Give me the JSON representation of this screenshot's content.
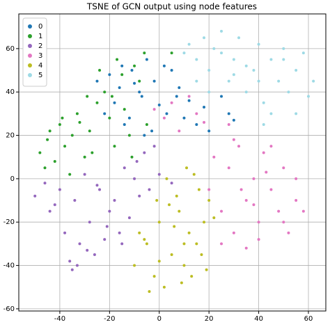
{
  "chart_data": {
    "type": "scatter",
    "title": "TSNE of GCN output using node features",
    "xlim": [
      -56.5,
      67
    ],
    "ylim": [
      -61,
      76
    ],
    "xticks": [
      -40,
      -20,
      0,
      20,
      40,
      60
    ],
    "yticks": [
      -60,
      -40,
      -20,
      0,
      20,
      40,
      60
    ],
    "grid": true,
    "legend": "upper left",
    "series": [
      {
        "name": "0",
        "color": "#1f77b4",
        "x": [
          -20,
          -18,
          -15,
          -12,
          -10,
          -8,
          -5,
          -3,
          -22,
          -16,
          -14,
          -11,
          -7,
          -2,
          0,
          3,
          5,
          8,
          10,
          12,
          15,
          18,
          20,
          25,
          28,
          -25,
          -6,
          2,
          7,
          30
        ],
        "y": [
          48,
          35,
          52,
          28,
          44,
          40,
          55,
          22,
          30,
          42,
          25,
          50,
          38,
          45,
          34,
          30,
          50,
          42,
          28,
          36,
          25,
          33,
          22,
          38,
          30,
          45,
          20,
          52,
          38,
          27
        ]
      },
      {
        "name": "1",
        "color": "#2ca02c",
        "x": [
          -48,
          -45,
          -42,
          -40,
          -38,
          -35,
          -33,
          -30,
          -28,
          -25,
          -22,
          -20,
          -18,
          -15,
          -12,
          -10,
          -8,
          -46,
          -36,
          -32,
          -27,
          -24,
          -19,
          -14,
          -11,
          -6,
          -44,
          -39,
          -29,
          -17,
          -5,
          5
        ],
        "y": [
          12,
          18,
          8,
          25,
          15,
          20,
          30,
          10,
          22,
          35,
          40,
          28,
          15,
          48,
          20,
          52,
          45,
          5,
          2,
          26,
          12,
          50,
          38,
          32,
          10,
          58,
          22,
          28,
          38,
          55,
          25,
          58
        ]
      },
      {
        "name": "2",
        "color": "#9467bd",
        "x": [
          -50,
          -46,
          -44,
          -40,
          -38,
          -36,
          -34,
          -32,
          -30,
          -28,
          -26,
          -24,
          -22,
          -20,
          -18,
          -16,
          -14,
          -12,
          -10,
          -8,
          -6,
          -4,
          -2,
          0,
          -42,
          -35,
          -29,
          -21,
          -15,
          -9,
          -33,
          -25,
          5
        ],
        "y": [
          -8,
          -2,
          -15,
          -5,
          -25,
          -38,
          -10,
          -30,
          2,
          -20,
          -35,
          -5,
          -28,
          -15,
          -10,
          -25,
          5,
          -18,
          0,
          -8,
          12,
          -5,
          15,
          2,
          -12,
          -42,
          -33,
          -22,
          -30,
          8,
          -40,
          -3,
          -2
        ]
      },
      {
        "name": "3",
        "color": "#e377c2",
        "x": [
          20,
          22,
          25,
          28,
          30,
          32,
          35,
          38,
          40,
          42,
          45,
          48,
          50,
          52,
          55,
          58,
          25,
          30,
          35,
          40,
          45,
          50,
          55,
          33,
          28,
          -2,
          2,
          5,
          8,
          12,
          15,
          18,
          43,
          38
        ],
        "y": [
          -5,
          10,
          -15,
          5,
          -25,
          15,
          -10,
          0,
          -20,
          12,
          -5,
          -15,
          5,
          -25,
          -10,
          -15,
          -30,
          18,
          -32,
          -28,
          15,
          -20,
          0,
          -5,
          25,
          32,
          28,
          35,
          22,
          38,
          30,
          26,
          3,
          -12
        ]
      },
      {
        "name": "4",
        "color": "#bcbd22",
        "x": [
          -10,
          -8,
          -5,
          -2,
          0,
          2,
          5,
          8,
          10,
          12,
          15,
          18,
          20,
          -4,
          3,
          7,
          13,
          17,
          -6,
          0,
          6,
          11,
          16,
          9,
          4,
          -1,
          14,
          19,
          10,
          22
        ],
        "y": [
          -40,
          -25,
          -30,
          -45,
          -20,
          -50,
          -35,
          -15,
          -40,
          -25,
          -30,
          -20,
          -10,
          -52,
          0,
          -8,
          -45,
          -35,
          -28,
          -38,
          -22,
          5,
          -5,
          -48,
          -12,
          -10,
          2,
          -42,
          -30,
          -18
        ]
      },
      {
        "name": "5",
        "color": "#9edae5",
        "x": [
          10,
          12,
          15,
          18,
          20,
          22,
          25,
          28,
          30,
          32,
          35,
          38,
          40,
          42,
          45,
          48,
          50,
          52,
          55,
          58,
          60,
          62,
          15,
          25,
          35,
          45,
          55,
          40,
          30,
          20,
          42,
          50
        ],
        "y": [
          58,
          62,
          55,
          65,
          50,
          60,
          68,
          45,
          55,
          65,
          40,
          50,
          62,
          35,
          55,
          45,
          60,
          40,
          50,
          58,
          38,
          45,
          45,
          58,
          52,
          30,
          30,
          45,
          48,
          40,
          25,
          55
        ]
      }
    ]
  }
}
